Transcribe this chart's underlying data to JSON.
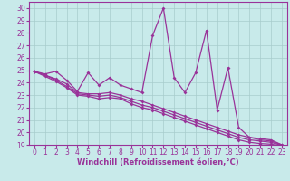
{
  "xlabel": "Windchill (Refroidissement éolien,°C)",
  "bg_color": "#c8eaea",
  "grid_color": "#a8cccc",
  "line_color": "#993399",
  "spine_color": "#993399",
  "xlim": [
    -0.5,
    23.5
  ],
  "ylim": [
    19,
    30.5
  ],
  "xticks": [
    0,
    1,
    2,
    3,
    4,
    5,
    6,
    7,
    8,
    9,
    10,
    11,
    12,
    13,
    14,
    15,
    16,
    17,
    18,
    19,
    20,
    21,
    22,
    23
  ],
  "yticks": [
    19,
    20,
    21,
    22,
    23,
    24,
    25,
    26,
    27,
    28,
    29,
    30
  ],
  "lines": [
    [
      24.9,
      24.7,
      24.9,
      24.2,
      23.3,
      24.8,
      23.8,
      24.4,
      23.8,
      23.5,
      23.2,
      27.8,
      30.0,
      24.4,
      23.2,
      24.8,
      28.2,
      21.8,
      25.2,
      20.4,
      19.6,
      19.5,
      19.4,
      19.0
    ],
    [
      24.9,
      24.6,
      24.3,
      23.9,
      23.2,
      23.1,
      23.1,
      23.2,
      23.0,
      22.7,
      22.5,
      22.2,
      21.9,
      21.6,
      21.3,
      21.0,
      20.7,
      20.4,
      20.1,
      19.8,
      19.6,
      19.4,
      19.3,
      19.0
    ],
    [
      24.9,
      24.6,
      24.2,
      23.7,
      23.1,
      23.0,
      22.9,
      23.0,
      22.8,
      22.5,
      22.2,
      22.0,
      21.7,
      21.4,
      21.1,
      20.8,
      20.5,
      20.2,
      19.9,
      19.6,
      19.4,
      19.3,
      19.2,
      18.95
    ],
    [
      24.9,
      24.5,
      24.1,
      23.6,
      23.0,
      22.9,
      22.7,
      22.8,
      22.7,
      22.3,
      22.0,
      21.8,
      21.5,
      21.2,
      20.9,
      20.6,
      20.3,
      20.0,
      19.7,
      19.4,
      19.2,
      19.1,
      19.05,
      18.9
    ]
  ],
  "tick_fontsize": 5.5,
  "xlabel_fontsize": 6,
  "marker": "D",
  "markersize": 2.0,
  "linewidth": 0.9
}
